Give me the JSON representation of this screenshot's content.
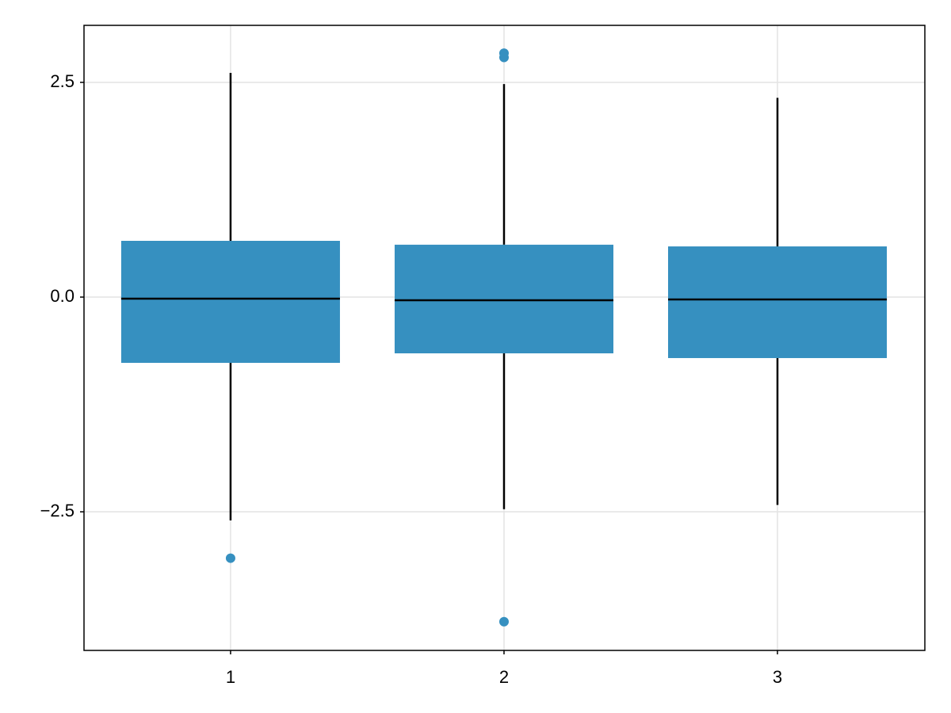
{
  "chart_data": {
    "type": "box",
    "x": [
      1,
      2,
      3
    ],
    "whisker_low": [
      -2.6,
      -2.47,
      -2.42
    ],
    "q1": [
      -0.766,
      -0.655,
      -0.71
    ],
    "median": [
      -0.018,
      -0.037,
      -0.028
    ],
    "q3": [
      0.655,
      0.61,
      0.59
    ],
    "whisker_high": [
      2.61,
      2.48,
      2.32
    ],
    "outliers": [
      [
        -3.04
      ],
      [
        2.84,
        2.79,
        -3.78
      ],
      []
    ],
    "box_width": 0.8,
    "color": "#3690c0",
    "xlim": [
      0.464,
      3.539
    ],
    "xticks": [
      1,
      2,
      3
    ],
    "ylim": [
      -4.114,
      3.164
    ],
    "yticks": [
      {
        "value": -2.5,
        "label": "−2.5"
      },
      {
        "value": 0,
        "label": "0.0"
      },
      {
        "value": 2.5,
        "label": "2.5"
      }
    ],
    "grid": true
  }
}
